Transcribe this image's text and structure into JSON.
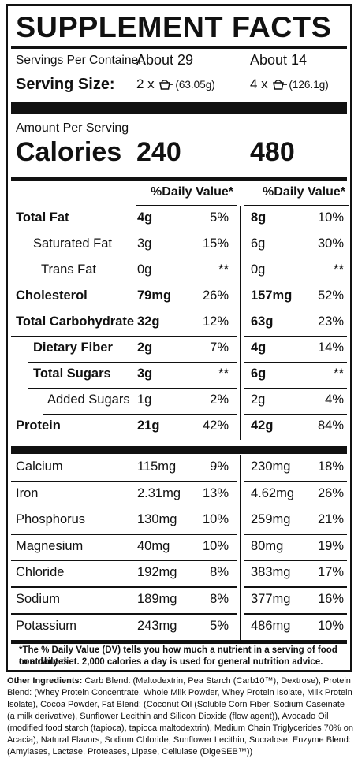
{
  "title": "SUPPLEMENT FACTS",
  "servings": {
    "per_container_label": "Servings Per Container:",
    "per_container_a": "About 29",
    "per_container_b": "About 14",
    "serving_size_label": "Serving Size:",
    "size_a_count": "2 x",
    "size_a_weight": "(63.05g)",
    "size_b_count": "4 x",
    "size_b_weight": "(126.1g)",
    "scoop_icon": "scoop-icon"
  },
  "calories": {
    "amount_label": "Amount Per Serving",
    "label": "Calories",
    "value_a": "240",
    "value_b": "480"
  },
  "dv_header_a": "%Daily Value*",
  "dv_header_b": "%Daily Value*",
  "nutrients": [
    {
      "name": "Total Fat",
      "amt_a": "4g",
      "dv_a": "5%",
      "amt_b": "8g",
      "dv_b": "10%"
    },
    {
      "name": "Saturated Fat",
      "amt_a": "3g",
      "dv_a": "15%",
      "amt_b": "6g",
      "dv_b": "30%"
    },
    {
      "name": "Trans Fat",
      "amt_a": "0g",
      "dv_a": "**",
      "amt_b": "0g",
      "dv_b": "**"
    },
    {
      "name": "Cholesterol",
      "amt_a": "79mg",
      "dv_a": "26%",
      "amt_b": "157mg",
      "dv_b": "52%"
    },
    {
      "name": "Total Carbohydrate",
      "amt_a": "32g",
      "dv_a": "12%",
      "amt_b": "63g",
      "dv_b": "23%"
    },
    {
      "name": "Dietary Fiber",
      "amt_a": "2g",
      "dv_a": "7%",
      "amt_b": "4g",
      "dv_b": "14%"
    },
    {
      "name": "Total Sugars",
      "amt_a": "3g",
      "dv_a": "**",
      "amt_b": "6g",
      "dv_b": "**"
    },
    {
      "name": "Added Sugars",
      "amt_a": "1g",
      "dv_a": "2%",
      "amt_b": "2g",
      "dv_b": "4%"
    },
    {
      "name": "Protein",
      "amt_a": "21g",
      "dv_a": "42%",
      "amt_b": "42g",
      "dv_b": "84%"
    }
  ],
  "minerals": [
    {
      "name": "Calcium",
      "amt_a": "115mg",
      "dv_a": "9%",
      "amt_b": "230mg",
      "dv_b": "18%"
    },
    {
      "name": "Iron",
      "amt_a": "2.31mg",
      "dv_a": "13%",
      "amt_b": "4.62mg",
      "dv_b": "26%"
    },
    {
      "name": "Phosphorus",
      "amt_a": "130mg",
      "dv_a": "10%",
      "amt_b": "259mg",
      "dv_b": "21%"
    },
    {
      "name": "Magnesium",
      "amt_a": "40mg",
      "dv_a": "10%",
      "amt_b": "80mg",
      "dv_b": "19%"
    },
    {
      "name": "Chloride",
      "amt_a": "192mg",
      "dv_a": "8%",
      "amt_b": "383mg",
      "dv_b": "17%"
    },
    {
      "name": "Sodium",
      "amt_a": "189mg",
      "dv_a": "8%",
      "amt_b": "377mg",
      "dv_b": "16%"
    },
    {
      "name": "Potassium",
      "amt_a": "243mg",
      "dv_a": "5%",
      "amt_b": "486mg",
      "dv_b": "10%"
    }
  ],
  "footnote_line1": "*The % Daily Value (DV) tells you how much a nutrient in a serving of food contributes",
  "footnote_line2": "to a daily diet. 2,000 calories a day is used for general nutrition advice.",
  "ingredients_label": "Other Ingredients:",
  "ingredients_text": "Carb Blend: (Maltodextrin, Pea Starch (Carb10™), Dextrose), Protein Blend: (Whey Protein Concentrate, Whole Milk Powder, Whey Protein Isolate, Milk Protein Isolate), Cocoa Powder, Fat Blend: (Coconut Oil (Soluble Corn Fiber, Sodium Caseinate (a milk derivative), Sunflower Lecithin and Silicon Dioxide (flow agent)), Avocado Oil (modified food starch (tapioca), tapioca maltodextrin), Medium Chain Triglycerides 70% on Acacia), Natural Flavors, Sodium Chloride, Sunflower Lecithin, Sucralose, Enzyme Blend: (Amylases, Lactase, Proteases, Lipase, Cellulase (DigeSEB™))"
}
